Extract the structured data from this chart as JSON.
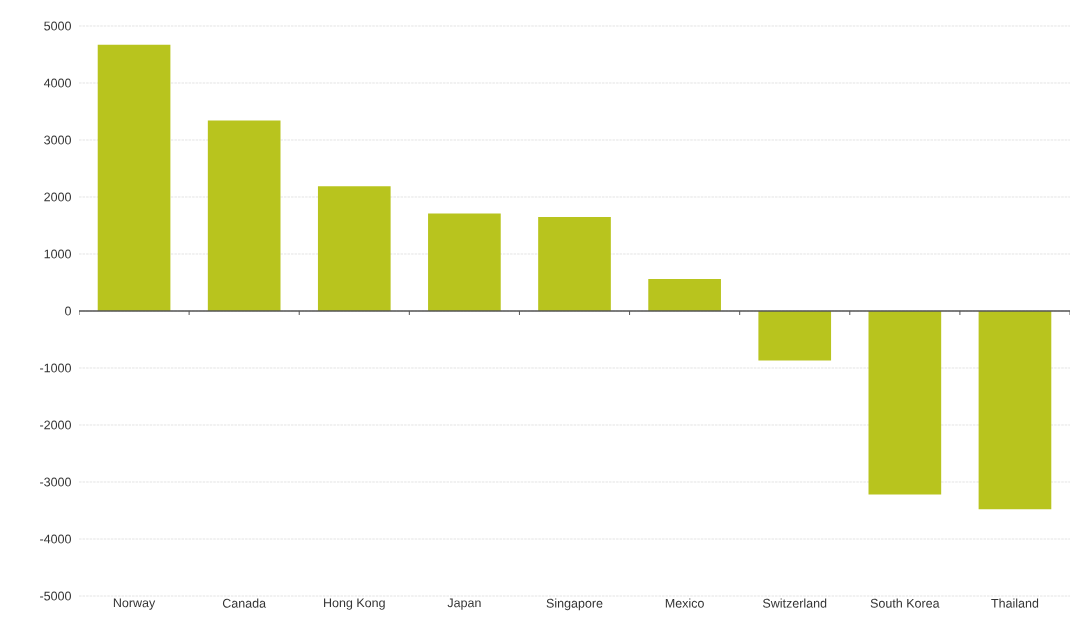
{
  "chart_data": {
    "type": "bar",
    "categories": [
      "Norway",
      "Canada",
      "Hong Kong",
      "Japan",
      "Singapore",
      "Mexico",
      "Switzerland",
      "South Korea",
      "Thailand"
    ],
    "values": [
      4670,
      3340,
      2190,
      1710,
      1650,
      560,
      -870,
      -3220,
      -3480
    ],
    "color": "#b8c41e",
    "ylim": [
      -5000,
      5000
    ],
    "yticks": [
      -5000,
      -4000,
      -3000,
      -2000,
      -1000,
      0,
      1000,
      2000,
      3000,
      4000,
      5000
    ],
    "grid": "y"
  }
}
